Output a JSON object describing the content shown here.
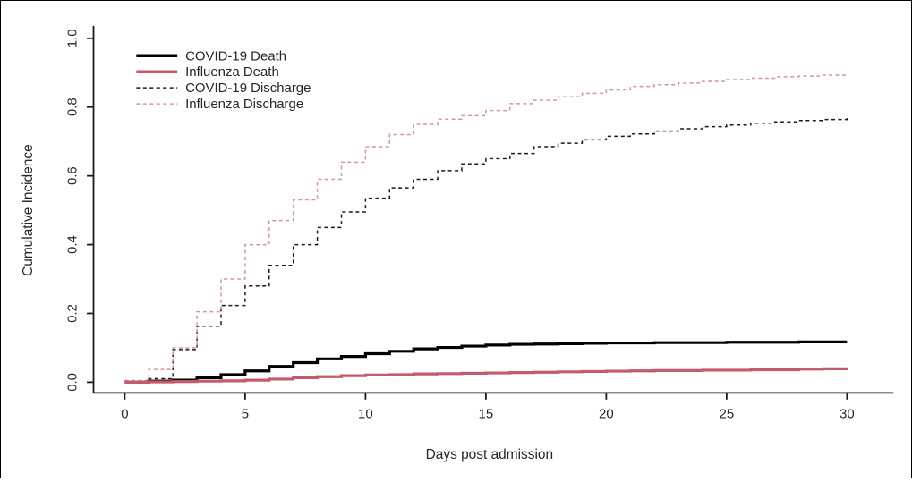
{
  "chart_data": {
    "type": "line",
    "subtype": "step",
    "title": "",
    "xlabel": "Days post admission",
    "ylabel": "Cumulative Incidence",
    "xlim": [
      0,
      30
    ],
    "ylim": [
      0.0,
      1.0
    ],
    "grid": false,
    "legend_position": "top-left",
    "xticks": [
      0,
      5,
      10,
      15,
      20,
      25,
      30
    ],
    "yticks": [
      0.0,
      0.2,
      0.4,
      0.6,
      0.8,
      1.0
    ],
    "xtick_labels": [
      "0",
      "5",
      "10",
      "15",
      "20",
      "25",
      "30"
    ],
    "ytick_labels": [
      "0.0",
      "0.2",
      "0.4",
      "0.6",
      "0.8",
      "1.0"
    ],
    "x": [
      0,
      1,
      2,
      3,
      4,
      5,
      6,
      7,
      8,
      9,
      10,
      11,
      12,
      13,
      14,
      15,
      16,
      17,
      18,
      19,
      20,
      21,
      22,
      23,
      24,
      25,
      26,
      27,
      28,
      29,
      30
    ],
    "series": [
      {
        "name": "COVID-19 Death",
        "style": "solid",
        "color": "#000000",
        "line_width": 3.2,
        "values": [
          0,
          0.003,
          0.006,
          0.013,
          0.022,
          0.033,
          0.046,
          0.057,
          0.068,
          0.075,
          0.083,
          0.09,
          0.097,
          0.101,
          0.105,
          0.108,
          0.11,
          0.111,
          0.112,
          0.113,
          0.114,
          0.114,
          0.115,
          0.115,
          0.115,
          0.116,
          0.116,
          0.116,
          0.117,
          0.117,
          0.117
        ]
      },
      {
        "name": "Influenza Death",
        "style": "solid",
        "color": "#C45A6E",
        "line_width": 3.2,
        "values": [
          0,
          0.001,
          0.002,
          0.003,
          0.004,
          0.006,
          0.009,
          0.013,
          0.016,
          0.019,
          0.021,
          0.022,
          0.024,
          0.025,
          0.026,
          0.027,
          0.028,
          0.029,
          0.03,
          0.031,
          0.032,
          0.033,
          0.034,
          0.034,
          0.035,
          0.035,
          0.036,
          0.036,
          0.038,
          0.039,
          0.04
        ]
      },
      {
        "name": "COVID-19 Discharge",
        "style": "dashed",
        "color": "#1a1a1a",
        "line_width": 1.5,
        "values": [
          0,
          0.01,
          0.095,
          0.163,
          0.223,
          0.28,
          0.34,
          0.4,
          0.45,
          0.495,
          0.535,
          0.565,
          0.59,
          0.615,
          0.635,
          0.65,
          0.665,
          0.685,
          0.695,
          0.705,
          0.715,
          0.722,
          0.73,
          0.737,
          0.743,
          0.748,
          0.753,
          0.757,
          0.761,
          0.764,
          0.768
        ]
      },
      {
        "name": "Influenza Discharge",
        "style": "dashed",
        "color": "#D494A6",
        "line_width": 1.5,
        "values": [
          0.005,
          0.037,
          0.1,
          0.205,
          0.3,
          0.4,
          0.47,
          0.53,
          0.59,
          0.64,
          0.685,
          0.72,
          0.75,
          0.765,
          0.775,
          0.79,
          0.81,
          0.82,
          0.83,
          0.84,
          0.85,
          0.86,
          0.865,
          0.87,
          0.875,
          0.88,
          0.884,
          0.888,
          0.89,
          0.893,
          0.896
        ]
      }
    ],
    "colors": {
      "axis": "#1a1a1a",
      "text": "#262626",
      "background": "#ffffff"
    }
  }
}
